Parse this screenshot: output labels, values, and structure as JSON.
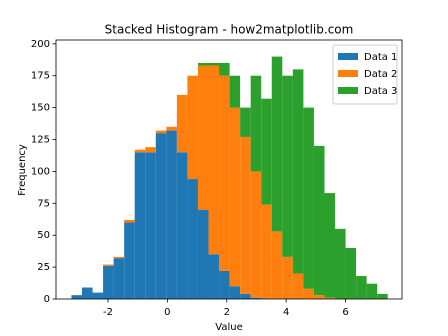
{
  "chart_data": {
    "type": "histogram",
    "title": "Stacked Histogram - how2matplotlib.com",
    "x_label": "Value",
    "y_label": "Frequency",
    "stacked": true,
    "legend": "upper right",
    "bins": [
      -3.23,
      -2.875,
      -2.52,
      -2.165,
      -1.81,
      -1.455,
      -1.1,
      -0.745,
      -0.39,
      -0.035,
      0.32,
      0.675,
      1.03,
      1.385,
      1.74,
      2.095,
      2.45,
      2.805,
      3.16,
      3.515,
      3.87,
      4.225,
      4.58,
      4.935,
      5.29,
      5.645,
      6.0,
      6.355,
      6.71,
      7.065,
      7.42
    ],
    "series": [
      {
        "name": "Data 1",
        "color": "#1f77b4",
        "values": [
          3,
          9,
          5,
          26,
          32,
          60,
          115,
          115,
          130,
          132,
          115,
          94,
          70,
          35,
          22,
          10,
          4,
          1,
          0,
          0,
          0,
          0,
          0,
          0,
          0,
          0,
          0,
          0,
          0,
          0
        ]
      },
      {
        "name": "Data 2",
        "color": "#ff7f0e",
        "values": [
          0,
          0,
          0,
          1,
          1,
          2,
          2,
          4,
          2,
          3,
          45,
          81,
          113,
          148,
          153,
          140,
          123,
          99,
          74,
          53,
          33,
          20,
          8,
          3,
          1,
          0,
          0,
          0,
          0,
          0
        ]
      },
      {
        "name": "Data 3",
        "color": "#2ca02c",
        "values": [
          0,
          0,
          0,
          0,
          0,
          0,
          0,
          0,
          0,
          0,
          0,
          0,
          2,
          2,
          10,
          25,
          23,
          75,
          83,
          137,
          142,
          160,
          142,
          117,
          82,
          55,
          40,
          18,
          12,
          4
        ]
      }
    ],
    "xlim": [
      -3.75,
      7.9
    ],
    "ylim": [
      0,
      203
    ],
    "xticks": [
      -2,
      0,
      2,
      4,
      6
    ],
    "yticks": [
      0,
      25,
      50,
      75,
      100,
      125,
      150,
      175,
      200
    ]
  }
}
